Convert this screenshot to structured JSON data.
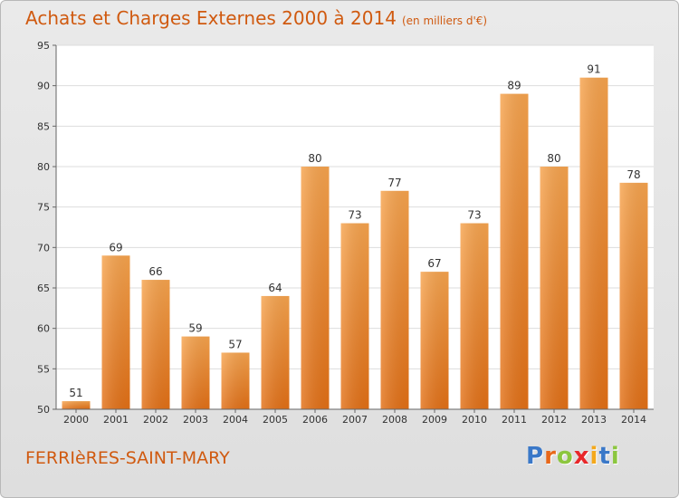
{
  "header": {
    "title": "Achats et Charges Externes 2000 à 2014",
    "subtitle": "(en milliers d'€)"
  },
  "footer": {
    "commune": "FERRIèRES-SAINT-MARY",
    "logo_letters": [
      "P",
      "r",
      "o",
      "x",
      "i",
      "t",
      "i"
    ],
    "logo_colors": [
      "#3a78c8",
      "#e8681a",
      "#8cc63f",
      "#e8272a",
      "#f4a81c",
      "#3a78c8",
      "#8cc63f"
    ]
  },
  "chart_data": {
    "type": "bar",
    "title": "Achats et Charges Externes 2000 à 2014",
    "subtitle": "(en milliers d'€)",
    "categories": [
      "2000",
      "2001",
      "2002",
      "2003",
      "2004",
      "2005",
      "2006",
      "2007",
      "2008",
      "2009",
      "2010",
      "2011",
      "2012",
      "2013",
      "2014"
    ],
    "values": [
      51,
      69,
      66,
      59,
      57,
      64,
      80,
      73,
      77,
      67,
      73,
      89,
      80,
      91,
      78
    ],
    "ylim": [
      50,
      95
    ],
    "yticks": [
      50,
      55,
      60,
      65,
      70,
      75,
      80,
      85,
      90,
      95
    ],
    "grid": true,
    "bar_color": "#f0832a"
  }
}
